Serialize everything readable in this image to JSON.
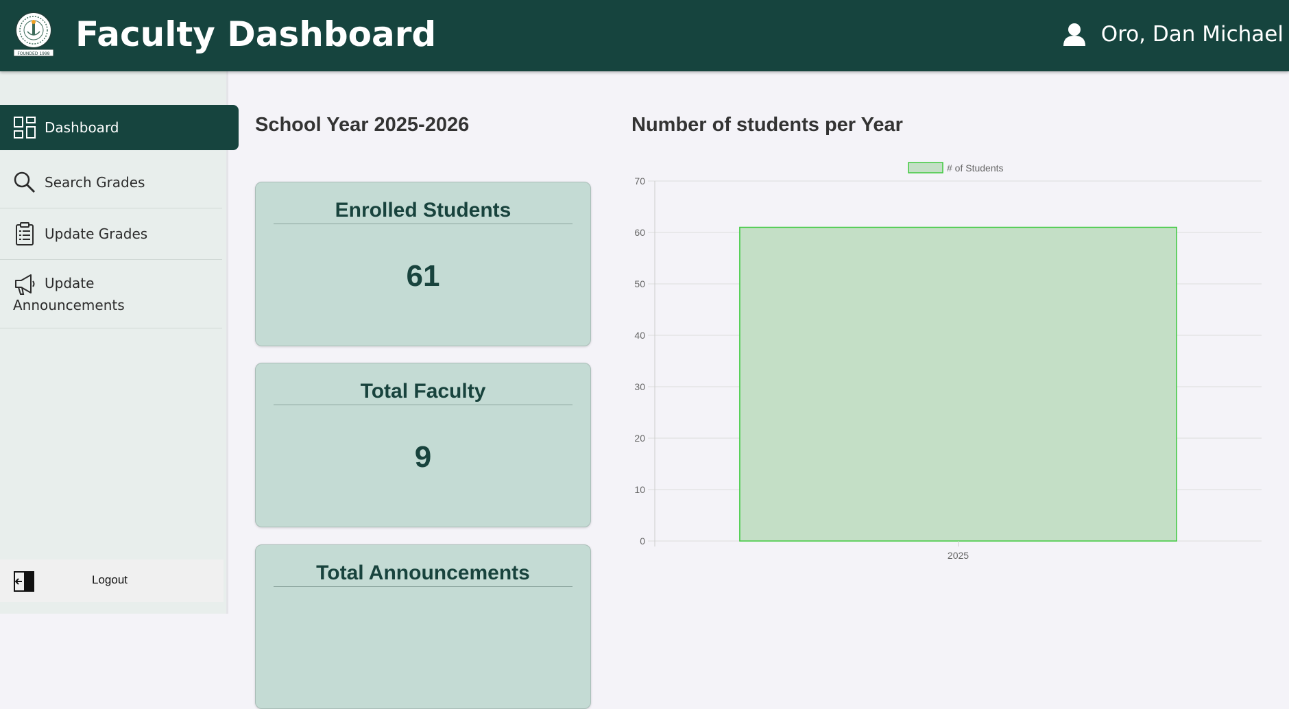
{
  "header": {
    "title": "Faculty Dashboard",
    "user_name": "Oro, Dan Michael",
    "logo_text": "FOUNDED 1998",
    "logo_icon": "school-seal",
    "user_icon": "user-icon"
  },
  "colors": {
    "primary": "#16443e",
    "card_bg": "#c4dbd4",
    "card_text": "#18433d",
    "bar_fill": "#c4dfc6",
    "bar_border": "#3ec93e"
  },
  "sidebar": {
    "items": [
      {
        "label": "Dashboard",
        "icon": "dashboard-grid-icon",
        "active": true
      },
      {
        "label": "Search Grades",
        "icon": "search-icon",
        "active": false
      },
      {
        "label": "Update Grades",
        "icon": "clipboard-icon",
        "active": false
      },
      {
        "label": "Update Announcements",
        "label_line1": "Update",
        "label_line2": "Announcements",
        "icon": "megaphone-icon",
        "active": false
      }
    ],
    "logout_label": "Logout",
    "logout_icon": "logout-icon"
  },
  "main": {
    "school_year_title": "School Year 2025-2026",
    "chart_title": "Number of students per Year",
    "cards": [
      {
        "label": "Enrolled Students",
        "value": "61"
      },
      {
        "label": "Total Faculty",
        "value": "9"
      },
      {
        "label": "Total Announcements",
        "value": ""
      }
    ]
  },
  "chart_data": {
    "type": "bar",
    "title": "",
    "categories": [
      "2025"
    ],
    "series": [
      {
        "name": "# of Students",
        "values": [
          61
        ]
      }
    ],
    "xlabel": "",
    "ylabel": "",
    "ylim": [
      0,
      70
    ],
    "yticks": [
      0,
      10,
      20,
      30,
      40,
      50,
      60,
      70
    ],
    "grid": true,
    "legend": "top-center"
  }
}
